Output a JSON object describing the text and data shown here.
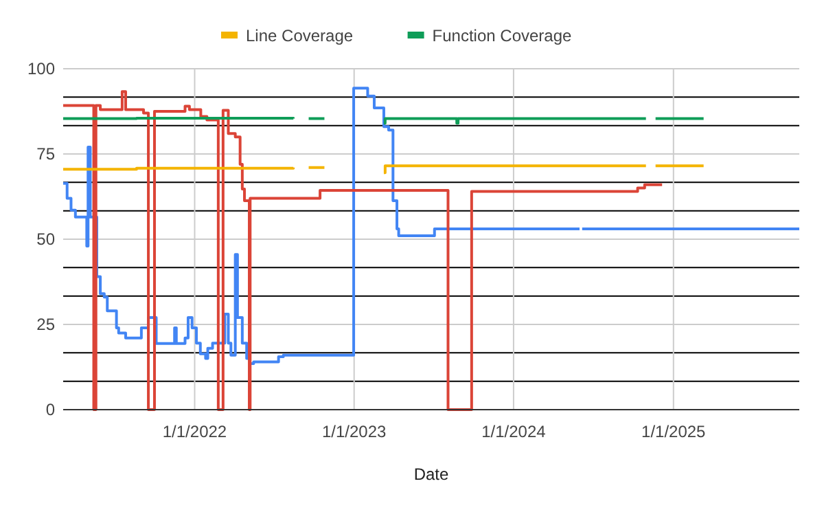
{
  "chart_data": {
    "type": "step",
    "xlabel": "Date",
    "legend": "top",
    "grid": true,
    "xlim": [
      "2021-03-06",
      "2025-10-16"
    ],
    "xticks": [
      {
        "value": "2022-01-01",
        "label": "1/1/2022"
      },
      {
        "value": "2023-01-01",
        "label": "1/1/2023"
      },
      {
        "value": "2024-01-01",
        "label": "1/1/2024"
      },
      {
        "value": "2025-01-01",
        "label": "1/1/2025"
      }
    ],
    "ylim": [
      0,
      100
    ],
    "yticks": [
      0,
      {
        "value": 8.333,
        "label": null
      },
      {
        "value": 16.667,
        "label": null
      },
      25,
      {
        "value": 33.333,
        "label": null
      },
      {
        "value": 41.667,
        "label": null
      },
      50,
      {
        "value": 58.333,
        "label": null
      },
      {
        "value": 66.667,
        "label": null
      },
      75,
      {
        "value": 83.333,
        "label": null
      },
      {
        "value": 91.667,
        "label": null
      },
      100
    ],
    "series": [
      {
        "color": "#4285f4",
        "x": [
          "2021-03-06",
          "2021-03-15",
          "2021-03-24",
          "2021-04-03",
          "2021-04-29",
          "2021-05-02",
          "2021-05-07",
          "2021-05-22",
          "2021-05-30",
          "2021-06-08",
          "2021-06-15",
          "2021-07-06",
          "2021-07-11",
          "2021-07-27",
          "2021-09-01",
          "2021-09-17",
          "2021-10-05",
          "2021-11-16",
          "2021-11-20",
          "2021-12-10",
          "2021-12-17",
          "2021-12-26",
          "2022-01-05",
          "2022-01-14",
          "2022-01-26",
          "2022-01-31",
          "2022-02-11",
          "2022-03-11",
          "2022-03-19",
          "2022-03-25",
          "2022-04-04",
          "2022-04-09",
          "2022-04-20",
          "2022-04-30",
          "2022-05-07",
          "2022-05-16",
          "2022-07-12",
          "2022-07-23",
          "2022-12-31",
          "2023-02-01",
          "2023-02-16",
          "2023-03-10",
          "2023-03-21",
          "2023-03-31",
          "2023-04-09",
          "2023-04-13",
          "2023-07-04",
          "2024-05-31",
          "2024-06-01",
          "2024-06-06",
          "2025-10-16"
        ],
        "values": [
          66.4,
          62,
          58.5,
          56.5,
          48,
          77,
          56.5,
          39,
          34,
          33,
          29,
          24,
          22.5,
          21,
          24,
          27,
          19.4,
          24,
          19.4,
          21,
          27,
          24,
          19.5,
          16.4,
          15,
          18,
          19.5,
          28,
          19.5,
          16,
          45.5,
          27,
          19.5,
          15,
          13.5,
          14,
          15.5,
          16,
          94.3,
          92,
          88.5,
          83,
          82,
          61.3,
          53,
          51,
          53,
          53,
          null,
          53,
          53
        ]
      },
      {
        "color": "#db4437",
        "x": [
          "2021-03-06",
          "2021-05-15",
          "2021-05-20",
          "2021-05-30",
          "2021-07-19",
          "2021-07-27",
          "2021-09-06",
          "2021-09-17",
          "2021-10-01",
          "2021-12-10",
          "2021-12-20",
          "2022-01-15",
          "2022-01-29",
          "2022-02-24",
          "2022-03-07",
          "2022-03-19",
          "2022-04-04",
          "2022-04-15",
          "2022-04-20",
          "2022-04-25",
          "2022-05-06",
          "2022-05-08",
          "2022-10-15",
          "2023-08-04",
          "2023-09-27",
          "2024-10-11",
          "2024-10-27",
          "2024-12-06"
        ],
        "values": [
          89.2,
          0,
          89.2,
          88,
          93.3,
          88,
          87,
          0,
          87.5,
          89,
          88,
          86,
          85,
          0,
          87.8,
          81,
          80,
          72,
          64.7,
          61.3,
          0,
          62,
          64.3,
          0,
          64,
          65,
          66,
          66
        ]
      },
      {
        "name": "Line Coverage",
        "color": "#f4b400",
        "x": [
          "2021-03-06",
          "2021-08-21",
          "2022-08-15",
          "2022-08-28",
          "2022-09-19",
          "2022-10-25",
          "2022-10-27",
          "2023-03-10",
          "2023-03-13",
          "2024-10-30",
          "2024-11-10",
          "2024-11-21",
          "2025-03-11"
        ],
        "values": [
          70.5,
          70.8,
          71,
          null,
          71,
          71,
          null,
          69.5,
          71.5,
          71.5,
          null,
          71.5,
          71.5
        ]
      },
      {
        "name": "Function Coverage",
        "color": "#0f9d58",
        "x": [
          "2021-03-06",
          "2021-08-21",
          "2022-08-15",
          "2022-08-28",
          "2022-09-19",
          "2022-10-25",
          "2022-10-27",
          "2023-03-10",
          "2023-03-13",
          "2023-08-24",
          "2023-08-27",
          "2024-10-30",
          "2024-11-10",
          "2024-11-21",
          "2025-03-11"
        ],
        "values": [
          85.4,
          85.5,
          85.4,
          null,
          85.4,
          85.4,
          null,
          84,
          85.4,
          84,
          85.4,
          85.4,
          null,
          85.4,
          85.4
        ]
      }
    ]
  }
}
